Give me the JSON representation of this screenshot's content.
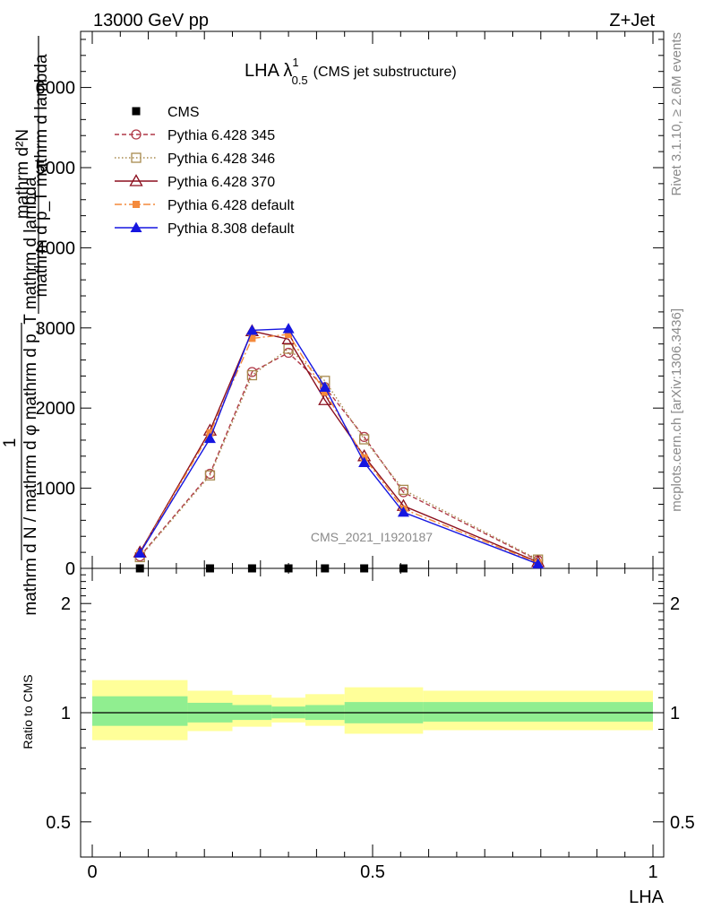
{
  "header": {
    "left": "13000 GeV pp",
    "right": "Z+Jet"
  },
  "side": {
    "rivet": "Rivet 3.1.10, ≥ 2.6M events",
    "mcplots": "mcplots.cern.ch [arXiv:1306.3436]"
  },
  "chart_data": [
    {
      "type": "line",
      "title": "LHA λ",
      "title_sup": "1",
      "title_sub": "0.5",
      "title_suffix": "(CMS jet substructure)",
      "watermark": "CMS_2021_I1920187",
      "ylabel": {
        "numerator": "mathrm d²N",
        "top_denominator": "mathrm d p_T mathrm d lambda",
        "one": "1",
        "bottom": "mathrm d N / mathrm d φ mathrm d p_T mathrm d lambda"
      },
      "xlim": [
        0,
        1
      ],
      "ylim": [
        0,
        6700
      ],
      "yticks": [
        0,
        1000,
        2000,
        3000,
        4000,
        5000,
        6000
      ],
      "ytick_labels": [
        "0",
        "1000",
        "2000",
        "3000",
        "4000",
        "5000",
        "6000"
      ],
      "x": [
        0.085,
        0.21,
        0.285,
        0.35,
        0.415,
        0.485,
        0.555,
        0.795
      ],
      "series": [
        {
          "name": "CMS",
          "color": "#000000",
          "marker": "square",
          "line": "none",
          "x": [
            0.085,
            0.21,
            0.285,
            0.35,
            0.415,
            0.485,
            0.555
          ],
          "values": [
            0,
            0,
            0,
            0,
            0,
            0,
            0
          ]
        },
        {
          "name": "Pythia 6.428 345",
          "color": "#b03a48",
          "marker": "circle-open",
          "line": "dashed",
          "values": [
            150,
            1180,
            2450,
            2690,
            2260,
            1640,
            950,
            100
          ]
        },
        {
          "name": "Pythia 6.428 346",
          "color": "#a88a4e",
          "marker": "square-open",
          "line": "dotted",
          "values": [
            140,
            1160,
            2410,
            2740,
            2340,
            1610,
            980,
            110
          ]
        },
        {
          "name": "Pythia 6.428 370",
          "color": "#8b0f1e",
          "marker": "triangle-open",
          "line": "solid",
          "values": [
            200,
            1720,
            2960,
            2860,
            2100,
            1400,
            780,
            80
          ]
        },
        {
          "name": "Pythia 6.428 default",
          "color": "#f48a3c",
          "marker": "square-filled",
          "line": "dashdot",
          "values": [
            190,
            1690,
            2870,
            2920,
            2200,
            1380,
            740,
            70
          ]
        },
        {
          "name": "Pythia 8.308 default",
          "color": "#1616e0",
          "marker": "triangle-filled",
          "line": "solid",
          "values": [
            190,
            1620,
            2970,
            2990,
            2260,
            1320,
            700,
            55
          ]
        }
      ]
    },
    {
      "type": "area",
      "ylabel": "Ratio to CMS",
      "xlabel": "LHA",
      "xlim": [
        0,
        1
      ],
      "ylim": [
        0.4,
        2.5
      ],
      "log_y": true,
      "yticks": [
        0.5,
        1,
        2
      ],
      "ytick_labels": [
        "0.5",
        "1",
        "2"
      ],
      "xticks": [
        0,
        0.5,
        1
      ],
      "xtick_labels": [
        "0",
        "0.5",
        "1"
      ],
      "bins": [
        0,
        0.17,
        0.25,
        0.32,
        0.38,
        0.45,
        0.59,
        1.0
      ],
      "band_inner": {
        "color": "#90ee90",
        "low": [
          0.92,
          0.94,
          0.955,
          0.965,
          0.955,
          0.935,
          0.945
        ],
        "high": [
          1.11,
          1.065,
          1.05,
          1.04,
          1.05,
          1.07,
          1.07
        ]
      },
      "band_outer": {
        "color": "#ffff99",
        "low": [
          0.84,
          0.89,
          0.915,
          0.94,
          0.92,
          0.875,
          0.895
        ],
        "high": [
          1.23,
          1.15,
          1.12,
          1.1,
          1.125,
          1.175,
          1.15
        ]
      },
      "reference": 1
    }
  ]
}
